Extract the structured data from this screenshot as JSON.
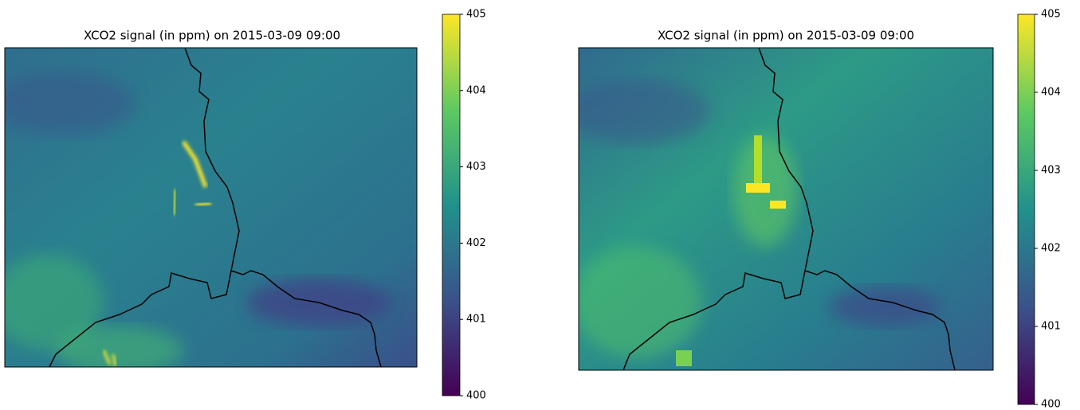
{
  "chart_data": [
    {
      "type": "heatmap",
      "title": "XCO2 signal (in ppm) on 2015-03-09 09:00",
      "colormap": "viridis",
      "clim": [
        400,
        405
      ],
      "cticks": [
        400,
        401,
        402,
        403,
        404,
        405
      ]
    },
    {
      "type": "heatmap",
      "title": "XCO2 signal (in ppm) on 2015-03-09 09:00",
      "colormap": "viridis",
      "clim": [
        400,
        405
      ],
      "cticks": [
        400,
        401,
        402,
        403,
        404,
        405
      ]
    }
  ]
}
